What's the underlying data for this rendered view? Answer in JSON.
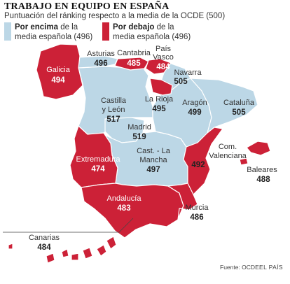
{
  "title": "TRABAJO EN EQUIPO EN ESPAÑA",
  "subtitle": "Puntuación del ránking respecto a la media de la OCDE (500)",
  "colors": {
    "above": "#bcd7e6",
    "below": "#cc2137"
  },
  "legend": {
    "above": {
      "strong": "Por encima",
      "rest": " de la",
      "line2": "media española (496)"
    },
    "below": {
      "strong": "Por debajo",
      "rest": " de la",
      "line2": "media española (496)"
    }
  },
  "regions": {
    "galicia": {
      "name": "Galicia",
      "value": "494",
      "category": "below"
    },
    "asturias": {
      "name": "Asturias",
      "value": "496",
      "category": "above"
    },
    "cantabria": {
      "name": "Cantabria",
      "value": "485",
      "category": "below"
    },
    "pais_vasco": {
      "name1": "País",
      "name2": "Vasco",
      "value": "484",
      "category": "below"
    },
    "navarra": {
      "name": "Navarra",
      "value": "505",
      "category": "above"
    },
    "la_rioja": {
      "name": "La Rioja",
      "value": "495",
      "category": "below"
    },
    "castilla_leon": {
      "name1": "Castilla",
      "name2": "y León",
      "value": "517",
      "category": "above"
    },
    "aragon": {
      "name": "Aragón",
      "value": "499",
      "category": "above"
    },
    "cataluna": {
      "name": "Cataluña",
      "value": "505",
      "category": "above"
    },
    "madrid": {
      "name": "Madrid",
      "value": "519",
      "category": "above"
    },
    "castilla_la_mancha": {
      "name1": "Cast. - La",
      "name2": "Mancha",
      "value": "497",
      "category": "above"
    },
    "extremadura": {
      "name": "Extremadura",
      "value": "474",
      "category": "below"
    },
    "valenciana": {
      "name1": "Com.",
      "name2": "Valenciana",
      "value": "492",
      "category": "below"
    },
    "baleares": {
      "name": "Baleares",
      "value": "488",
      "category": "below"
    },
    "andalucia": {
      "name": "Andalucía",
      "value": "483",
      "category": "below"
    },
    "murcia": {
      "name": "Murcia",
      "value": "486",
      "category": "below"
    },
    "canarias": {
      "name": "Canarias",
      "value": "484",
      "category": "below"
    }
  },
  "footer": {
    "source": "Fuente: OCDE.",
    "brand": "EL PAÍS"
  }
}
